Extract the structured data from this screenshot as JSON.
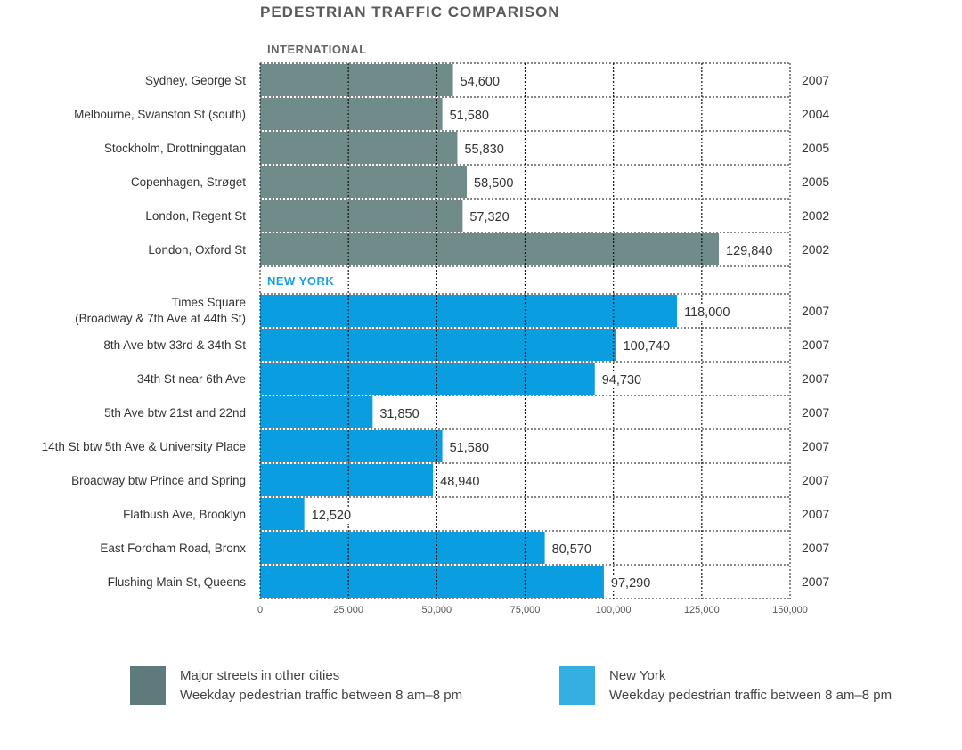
{
  "title": "PEDESTRIAN TRAFFIC COMPARISON",
  "colors": {
    "international": "#6f8c8b",
    "newyork": "#0a9ee0",
    "newyork_label": "#1a9fe0",
    "international_label": "#666666"
  },
  "legend": [
    {
      "line1": "Major streets in other cities",
      "line2": "Weekday pedestrian traffic between 8 am–8 pm",
      "color": "#5f7a7a"
    },
    {
      "line1": "New York",
      "line2": "Weekday pedestrian traffic between 8 am–8 pm",
      "color": "#35aee2"
    }
  ],
  "chart_data": {
    "type": "bar",
    "orientation": "horizontal",
    "title": "PEDESTRIAN TRAFFIC COMPARISON",
    "xlim": [
      0,
      150000
    ],
    "xticks": [
      "0",
      "25,000",
      "50,000",
      "75,000",
      "100,000",
      "125,000",
      "150,000"
    ],
    "xtick_values": [
      0,
      25000,
      50000,
      75000,
      100000,
      125000,
      150000
    ],
    "grid": true,
    "groups": [
      {
        "name": "INTERNATIONAL",
        "color": "#6f8c8b",
        "rows": [
          {
            "label": [
              "Sydney, George St"
            ],
            "value": 54600,
            "value_label": "54,600",
            "year": "2007"
          },
          {
            "label": [
              "Melbourne, Swanston St (south)"
            ],
            "value": 51580,
            "value_label": "51,580",
            "year": "2004"
          },
          {
            "label": [
              "Stockholm, Drottninggatan"
            ],
            "value": 55830,
            "value_label": "55,830",
            "year": "2005"
          },
          {
            "label": [
              "Copenhagen, Strøget"
            ],
            "value": 58500,
            "value_label": "58,500",
            "year": "2005"
          },
          {
            "label": [
              "London, Regent St"
            ],
            "value": 57320,
            "value_label": "57,320",
            "year": "2002"
          },
          {
            "label": [
              "London, Oxford St"
            ],
            "value": 129840,
            "value_label": "129,840",
            "year": "2002"
          }
        ]
      },
      {
        "name": "NEW YORK",
        "color": "#0a9ee0",
        "rows": [
          {
            "label": [
              "Times Square",
              "(Broadway & 7th Ave at 44th St)"
            ],
            "value": 118000,
            "value_label": "118,000",
            "year": "2007"
          },
          {
            "label": [
              "8th Ave btw 33rd & 34th St"
            ],
            "value": 100740,
            "value_label": "100,740",
            "year": "2007"
          },
          {
            "label": [
              "34th St near 6th Ave"
            ],
            "value": 94730,
            "value_label": "94,730",
            "year": "2007"
          },
          {
            "label": [
              "5th Ave btw 21st and 22nd"
            ],
            "value": 31850,
            "value_label": "31,850",
            "year": "2007"
          },
          {
            "label": [
              "14th St btw 5th Ave & University Place"
            ],
            "value": 51580,
            "value_label": "51,580",
            "year": "2007"
          },
          {
            "label": [
              "Broadway btw Prince and Spring"
            ],
            "value": 48940,
            "value_label": "48,940",
            "year": "2007"
          },
          {
            "label": [
              "Flatbush Ave, Brooklyn"
            ],
            "value": 12520,
            "value_label": "12,520",
            "year": "2007"
          },
          {
            "label": [
              "East Fordham Road, Bronx"
            ],
            "value": 80570,
            "value_label": "80,570",
            "year": "2007"
          },
          {
            "label": [
              "Flushing Main St, Queens"
            ],
            "value": 97290,
            "value_label": "97,290",
            "year": "2007"
          }
        ]
      }
    ]
  }
}
